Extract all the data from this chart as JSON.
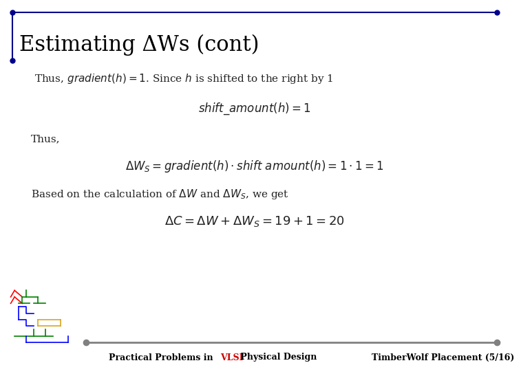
{
  "title": "Estimating ΔWs (cont)",
  "title_color": "#000000",
  "title_fontsize": 22,
  "header_line_color": "#00008B",
  "footer_line_color": "#808080",
  "footer_left": "Practical Problems in ",
  "footer_vlsi": "VLSI",
  "footer_right": " Physical Design",
  "footer_right2": "TimberWolf Placement (5/16)",
  "footer_color": "#000000",
  "footer_vlsi_color": "#CC0000",
  "footer_fontsize": 9,
  "bg_color": "#FFFFFF",
  "text_color": "#222222",
  "text_fontsize": 11
}
